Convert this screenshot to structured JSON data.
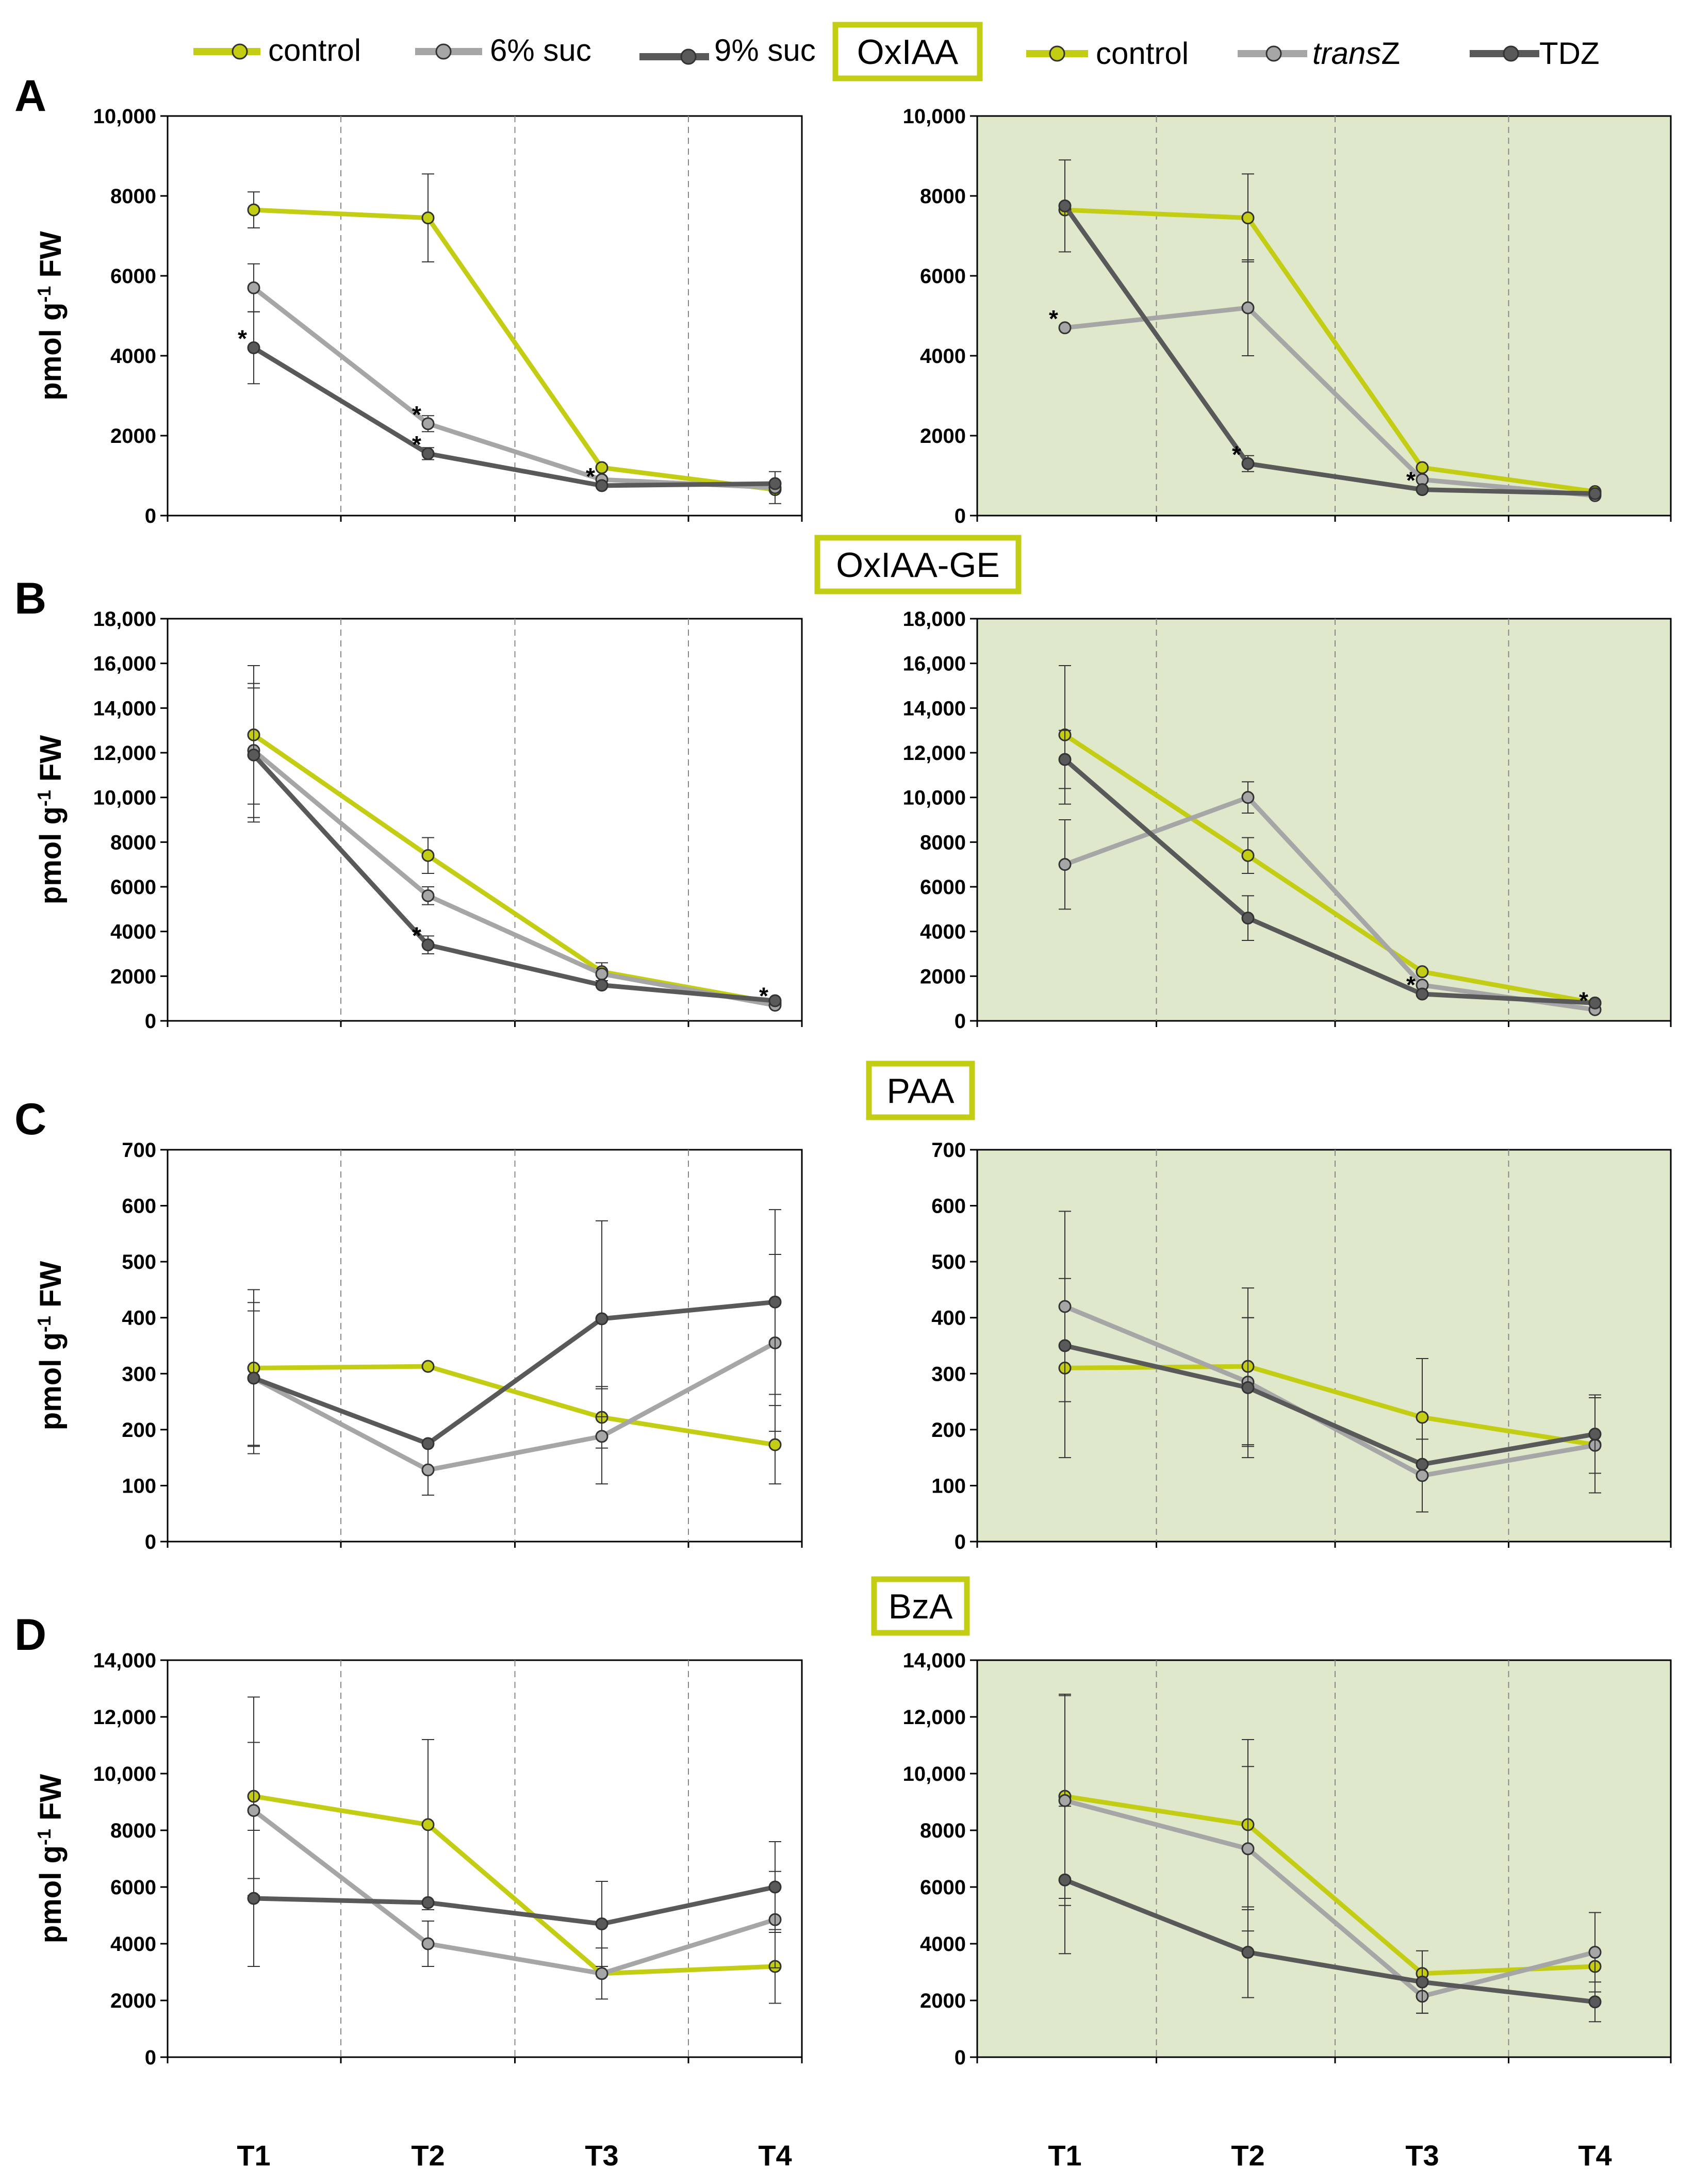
{
  "legend": {
    "left": [
      {
        "label": "control",
        "color": "#c3cd14"
      },
      {
        "label": "6% suc",
        "color": "#a6a6a6"
      },
      {
        "label": "9% suc",
        "color": "#595959"
      }
    ],
    "right": [
      {
        "label": "control",
        "color": "#c3cd14"
      },
      {
        "label": "transZ",
        "color": "#a6a6a6",
        "italic_part": "trans",
        "plain_part": "Z"
      },
      {
        "label": "TDZ",
        "color": "#595959"
      }
    ]
  },
  "y_axis_label": {
    "main": "pmol g",
    "sup": "-1",
    "tail": " FW"
  },
  "categories": [
    "T1",
    "T2",
    "T3",
    "T4"
  ],
  "colors": {
    "control": "#c3cd14",
    "light": "#a6a6a6",
    "dark": "#595959",
    "right_bg": "#dfe8ca",
    "title_border": "#c3cd14"
  },
  "chart_data": [
    {
      "type": "line",
      "panel": "A",
      "title": "OxIAA",
      "ylim": [
        0,
        10000
      ],
      "yticks": [
        0,
        2000,
        4000,
        6000,
        8000,
        10000
      ],
      "ytick_labels": [
        "0",
        "2000",
        "4000",
        "6000",
        "8000",
        "10,000"
      ],
      "categories": [
        "T1",
        "T2",
        "T3",
        "T4"
      ],
      "left": {
        "series": [
          {
            "name": "control",
            "values": [
              7650,
              7450,
              1200,
              650
            ],
            "errors": [
              450,
              1100,
              0,
              0
            ]
          },
          {
            "name": "6% suc",
            "values": [
              5700,
              2300,
              900,
              700
            ],
            "errors": [
              600,
              200,
              0,
              400
            ]
          },
          {
            "name": "9% suc",
            "values": [
              4200,
              1550,
              750,
              800
            ],
            "errors": [
              900,
              150,
              0,
              0
            ]
          }
        ],
        "stars": [
          {
            "series": "9% suc",
            "point": 0,
            "text": "*"
          },
          {
            "series": "6% suc",
            "point": 1,
            "text": "*"
          },
          {
            "series": "9% suc",
            "point": 1,
            "text": "*"
          },
          {
            "series": "9% suc",
            "point": 2,
            "text": "*"
          }
        ]
      },
      "right": {
        "series": [
          {
            "name": "control",
            "values": [
              7650,
              7450,
              1200,
              600
            ],
            "errors": [
              0,
              1100,
              0,
              0
            ]
          },
          {
            "name": "transZ",
            "values": [
              4700,
              5200,
              900,
              500
            ],
            "errors": [
              0,
              1200,
              0,
              0
            ]
          },
          {
            "name": "TDZ",
            "values": [
              7750,
              1300,
              650,
              550
            ],
            "errors": [
              1150,
              200,
              0,
              0
            ]
          }
        ],
        "stars": [
          {
            "series": "transZ",
            "point": 0,
            "text": "*"
          },
          {
            "series": "TDZ",
            "point": 1,
            "text": "*"
          },
          {
            "series": "TDZ",
            "point": 2,
            "text": "*"
          }
        ]
      }
    },
    {
      "type": "line",
      "panel": "B",
      "title": "OxIAA-GE",
      "ylim": [
        0,
        18000
      ],
      "yticks": [
        0,
        2000,
        4000,
        6000,
        8000,
        10000,
        12000,
        14000,
        16000,
        18000
      ],
      "ytick_labels": [
        "0",
        "2000",
        "4000",
        "6000",
        "8000",
        "10,000",
        "12,000",
        "14,000",
        "16,000",
        "18,000"
      ],
      "categories": [
        "T1",
        "T2",
        "T3",
        "T4"
      ],
      "left": {
        "series": [
          {
            "name": "control",
            "values": [
              12800,
              7400,
              2200,
              800
            ],
            "errors": [
              3100,
              800,
              400,
              0
            ]
          },
          {
            "name": "6% suc",
            "values": [
              12100,
              5600,
              2100,
              700
            ],
            "errors": [
              3000,
              400,
              0,
              0
            ]
          },
          {
            "name": "9% suc",
            "values": [
              11900,
              3400,
              1600,
              900
            ],
            "errors": [
              3000,
              400,
              0,
              0
            ]
          }
        ],
        "stars": [
          {
            "series": "9% suc",
            "point": 1,
            "text": "*"
          },
          {
            "series": "6% suc",
            "point": 3,
            "text": "*"
          }
        ]
      },
      "right": {
        "series": [
          {
            "name": "control",
            "values": [
              12800,
              7400,
              2200,
              800
            ],
            "errors": [
              3100,
              800,
              0,
              0
            ]
          },
          {
            "name": "transZ",
            "values": [
              7000,
              10000,
              1600,
              500
            ],
            "errors": [
              2000,
              700,
              0,
              0
            ]
          },
          {
            "name": "TDZ",
            "values": [
              11700,
              4600,
              1200,
              800
            ],
            "errors": [
              1300,
              1000,
              0,
              0
            ]
          }
        ],
        "stars": [
          {
            "series": "TDZ",
            "point": 2,
            "text": "*"
          },
          {
            "series": "transZ",
            "point": 3,
            "text": "*"
          }
        ]
      }
    },
    {
      "type": "line",
      "panel": "C",
      "title": "PAA",
      "ylim": [
        0,
        700
      ],
      "yticks": [
        0,
        100,
        200,
        300,
        400,
        500,
        600,
        700
      ],
      "ytick_labels": [
        "0",
        "100",
        "200",
        "300",
        "400",
        "500",
        "600",
        "700"
      ],
      "categories": [
        "T1",
        "T2",
        "T3",
        "T4"
      ],
      "left": {
        "series": [
          {
            "name": "control",
            "values": [
              310,
              313,
              222,
              173
            ],
            "errors": [
              140,
              0,
              55,
              70
            ]
          },
          {
            "name": "6% suc",
            "values": [
              292,
              128,
              188,
              355
            ],
            "errors": [
              135,
              45,
              85,
              158
            ]
          },
          {
            "name": "9% suc",
            "values": [
              292,
              175,
              398,
              428
            ],
            "errors": [
              120,
              0,
              175,
              165
            ]
          }
        ],
        "stars": []
      },
      "right": {
        "series": [
          {
            "name": "control",
            "values": [
              310,
              313,
              222,
              173
            ],
            "errors": [
              160,
              140,
              105,
              0
            ]
          },
          {
            "name": "transZ",
            "values": [
              420,
              285,
              118,
              172
            ],
            "errors": [
              170,
              115,
              65,
              85
            ]
          },
          {
            "name": "TDZ",
            "values": [
              350,
              275,
              138,
              192
            ],
            "errors": [
              0,
              125,
              0,
              70
            ]
          }
        ],
        "stars": []
      }
    },
    {
      "type": "line",
      "panel": "D",
      "title": "BzA",
      "ylim": [
        0,
        14000
      ],
      "yticks": [
        0,
        2000,
        4000,
        6000,
        8000,
        10000,
        12000,
        14000
      ],
      "ytick_labels": [
        "0",
        "2000",
        "4000",
        "6000",
        "8000",
        "10,000",
        "12,000",
        "14,000"
      ],
      "categories": [
        "T1",
        "T2",
        "T3",
        "T4"
      ],
      "left": {
        "series": [
          {
            "name": "control",
            "values": [
              9200,
              8200,
              2950,
              3200
            ],
            "errors": [
              3500,
              3000,
              0,
              1300
            ]
          },
          {
            "name": "6% suc",
            "values": [
              8700,
              4000,
              2950,
              4850
            ],
            "errors": [
              2400,
              800,
              900,
              1700
            ]
          },
          {
            "name": "9% suc",
            "values": [
              5600,
              5450,
              4700,
              6000
            ],
            "errors": [
              2400,
              0,
              1500,
              1600
            ]
          }
        ],
        "stars": []
      },
      "right": {
        "series": [
          {
            "name": "control",
            "values": [
              9200,
              8200,
              2950,
              3200
            ],
            "errors": [
              3600,
              3000,
              0,
              0
            ]
          },
          {
            "name": "transZ",
            "values": [
              9050,
              7350,
              2150,
              3700
            ],
            "errors": [
              3700,
              2900,
              600,
              1400
            ]
          },
          {
            "name": "TDZ",
            "values": [
              6250,
              3700,
              2650,
              1950
            ],
            "errors": [
              2600,
              1600,
              1100,
              700
            ]
          }
        ],
        "stars": []
      }
    }
  ]
}
